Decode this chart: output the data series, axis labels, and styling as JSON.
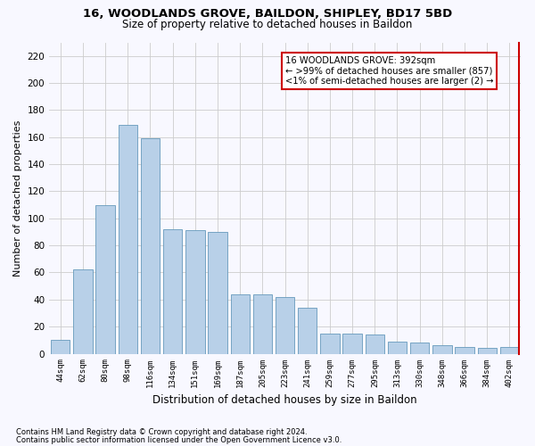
{
  "title": "16, WOODLANDS GROVE, BAILDON, SHIPLEY, BD17 5BD",
  "subtitle": "Size of property relative to detached houses in Baildon",
  "xlabel": "Distribution of detached houses by size in Baildon",
  "ylabel": "Number of detached properties",
  "categories": [
    "44sqm",
    "62sqm",
    "80sqm",
    "98sqm",
    "116sqm",
    "134sqm",
    "151sqm",
    "169sqm",
    "187sqm",
    "205sqm",
    "223sqm",
    "241sqm",
    "259sqm",
    "277sqm",
    "295sqm",
    "313sqm",
    "330sqm",
    "348sqm",
    "366sqm",
    "384sqm",
    "402sqm"
  ],
  "values": [
    10,
    62,
    110,
    169,
    159,
    92,
    91,
    90,
    44,
    44,
    42,
    34,
    15,
    15,
    14,
    9,
    8,
    6,
    5,
    4,
    5
  ],
  "bar_color": "#b8d0e8",
  "bar_edge_color": "#6699bb",
  "grid_color": "#cccccc",
  "annotation_box_color": "#cc0000",
  "annotation_text": "16 WOODLANDS GROVE: 392sqm\n← >99% of detached houses are smaller (857)\n<1% of semi-detached houses are larger (2) →",
  "ylim": [
    0,
    230
  ],
  "yticks": [
    0,
    20,
    40,
    60,
    80,
    100,
    120,
    140,
    160,
    180,
    200,
    220
  ],
  "footnote1": "Contains HM Land Registry data © Crown copyright and database right 2024.",
  "footnote2": "Contains public sector information licensed under the Open Government Licence v3.0.",
  "bg_color": "#f8f8ff"
}
